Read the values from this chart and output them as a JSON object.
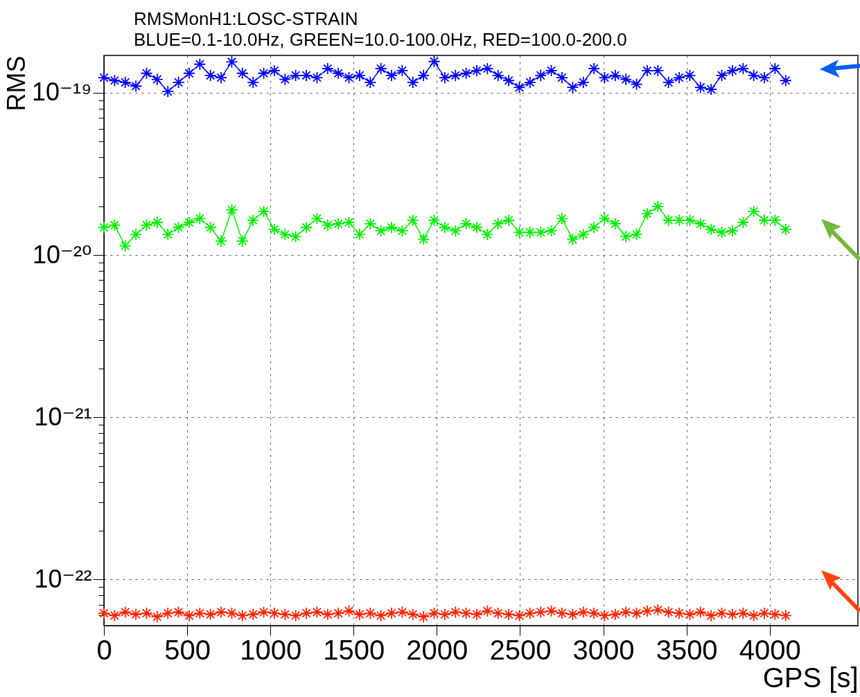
{
  "chart_data": {
    "type": "line",
    "title": "RMSMonH1:LOSC-STRAIN",
    "subtitle": "BLUE=0.1-10.0Hz, GREEN=10.0-100.0Hz, RED=100.0-200.0",
    "xlabel": "GPS [s]",
    "ylabel": "RMS",
    "x": [
      0,
      64,
      128,
      192,
      256,
      320,
      384,
      448,
      512,
      576,
      640,
      704,
      768,
      832,
      896,
      960,
      1024,
      1088,
      1152,
      1216,
      1280,
      1344,
      1408,
      1472,
      1536,
      1600,
      1664,
      1728,
      1792,
      1856,
      1920,
      1984,
      2048,
      2112,
      2176,
      2240,
      2304,
      2368,
      2432,
      2496,
      2560,
      2624,
      2688,
      2752,
      2816,
      2880,
      2944,
      3008,
      3072,
      3136,
      3200,
      3264,
      3328,
      3392,
      3456,
      3520,
      3584,
      3648,
      3712,
      3776,
      3840,
      3904,
      3968,
      4032,
      4096
    ],
    "series": [
      {
        "color": "#0000ff",
        "values": [
          1.24e-19,
          1.19e-19,
          1.16e-19,
          1.1e-19,
          1.32e-19,
          1.21e-19,
          1.02e-19,
          1.16e-19,
          1.32e-19,
          1.5e-19,
          1.28e-19,
          1.24e-19,
          1.55e-19,
          1.32e-19,
          1.16e-19,
          1.32e-19,
          1.37e-19,
          1.21e-19,
          1.28e-19,
          1.28e-19,
          1.24e-19,
          1.41e-19,
          1.32e-19,
          1.24e-19,
          1.28e-19,
          1.16e-19,
          1.41e-19,
          1.28e-19,
          1.37e-19,
          1.16e-19,
          1.28e-19,
          1.56e-19,
          1.24e-19,
          1.28e-19,
          1.32e-19,
          1.37e-19,
          1.41e-19,
          1.28e-19,
          1.19e-19,
          1.08e-19,
          1.16e-19,
          1.28e-19,
          1.37e-19,
          1.24e-19,
          1.08e-19,
          1.16e-19,
          1.41e-19,
          1.24e-19,
          1.28e-19,
          1.21e-19,
          1.13e-19,
          1.37e-19,
          1.37e-19,
          1.16e-19,
          1.24e-19,
          1.28e-19,
          1.08e-19,
          1.05e-19,
          1.28e-19,
          1.37e-19,
          1.41e-19,
          1.28e-19,
          1.24e-19,
          1.41e-19,
          1.19e-19
        ]
      },
      {
        "color": "#00ee00",
        "values": [
          1.48e-20,
          1.53e-20,
          1.14e-20,
          1.34e-20,
          1.53e-20,
          1.59e-20,
          1.34e-20,
          1.48e-20,
          1.59e-20,
          1.68e-20,
          1.48e-20,
          1.22e-20,
          1.9e-20,
          1.22e-20,
          1.64e-20,
          1.86e-20,
          1.44e-20,
          1.34e-20,
          1.3e-20,
          1.48e-20,
          1.68e-20,
          1.53e-20,
          1.56e-20,
          1.59e-20,
          1.34e-20,
          1.56e-20,
          1.41e-20,
          1.48e-20,
          1.41e-20,
          1.64e-20,
          1.25e-20,
          1.64e-20,
          1.48e-20,
          1.41e-20,
          1.56e-20,
          1.48e-20,
          1.34e-20,
          1.56e-20,
          1.64e-20,
          1.38e-20,
          1.38e-20,
          1.38e-20,
          1.41e-20,
          1.68e-20,
          1.25e-20,
          1.34e-20,
          1.48e-20,
          1.68e-20,
          1.56e-20,
          1.3e-20,
          1.34e-20,
          1.8e-20,
          1.99e-20,
          1.64e-20,
          1.64e-20,
          1.64e-20,
          1.56e-20,
          1.44e-20,
          1.38e-20,
          1.41e-20,
          1.59e-20,
          1.86e-20,
          1.64e-20,
          1.64e-20,
          1.44e-20
        ]
      },
      {
        "color": "#ff2200",
        "values": [
          6.2e-23,
          6e-23,
          6.3e-23,
          6.1e-23,
          6.2e-23,
          5.9e-23,
          6.2e-23,
          6.3e-23,
          6e-23,
          6.2e-23,
          6.1e-23,
          6.3e-23,
          6.2e-23,
          6e-23,
          6.1e-23,
          6.3e-23,
          6.2e-23,
          6.1e-23,
          6e-23,
          6.2e-23,
          6.3e-23,
          6.1e-23,
          6.2e-23,
          6.4e-23,
          6.1e-23,
          6.2e-23,
          6e-23,
          6.2e-23,
          6.3e-23,
          6.1e-23,
          5.9e-23,
          6.2e-23,
          6.1e-23,
          6.3e-23,
          6.2e-23,
          6.1e-23,
          6.4e-23,
          6.2e-23,
          6.1e-23,
          6e-23,
          6.2e-23,
          6.3e-23,
          6.4e-23,
          6.2e-23,
          6.1e-23,
          6.3e-23,
          6.2e-23,
          6e-23,
          6.1e-23,
          6.3e-23,
          6.2e-23,
          6.4e-23,
          6.5e-23,
          6.3e-23,
          6.2e-23,
          6.1e-23,
          6.3e-23,
          6e-23,
          6.2e-23,
          6.1e-23,
          6.2e-23,
          6e-23,
          6.2e-23,
          6.1e-23,
          6e-23
        ]
      }
    ],
    "log": true,
    "xlim": [
      0,
      4530
    ],
    "xticks": [
      0,
      500,
      1000,
      1500,
      2000,
      2500,
      3000,
      3500,
      4000
    ],
    "ylim": [
      5.2e-23,
      1.7e-19
    ],
    "yticks": [
      {
        "value": 6e-23,
        "label": null
      },
      {
        "value": 7e-23,
        "label": null
      },
      {
        "value": 8e-23,
        "label": null
      },
      {
        "value": 9e-23,
        "label": null
      },
      {
        "value": 1e-22,
        "label": "10⁻²²"
      },
      {
        "value": 2e-22,
        "label": null
      },
      {
        "value": 3e-22,
        "label": null
      },
      {
        "value": 4e-22,
        "label": null
      },
      {
        "value": 5e-22,
        "label": null
      },
      {
        "value": 6e-22,
        "label": null
      },
      {
        "value": 7e-22,
        "label": null
      },
      {
        "value": 8e-22,
        "label": null
      },
      {
        "value": 9e-22,
        "label": null
      },
      {
        "value": 1e-21,
        "label": "10⁻²¹"
      },
      {
        "value": 2e-21,
        "label": null
      },
      {
        "value": 3e-21,
        "label": null
      },
      {
        "value": 4e-21,
        "label": null
      },
      {
        "value": 5e-21,
        "label": null
      },
      {
        "value": 6e-21,
        "label": null
      },
      {
        "value": 7e-21,
        "label": null
      },
      {
        "value": 8e-21,
        "label": null
      },
      {
        "value": 9e-21,
        "label": null
      },
      {
        "value": 1e-20,
        "label": "10⁻²⁰"
      },
      {
        "value": 2e-20,
        "label": null
      },
      {
        "value": 3e-20,
        "label": null
      },
      {
        "value": 4e-20,
        "label": null
      },
      {
        "value": 5e-20,
        "label": null
      },
      {
        "value": 6e-20,
        "label": null
      },
      {
        "value": 7e-20,
        "label": null
      },
      {
        "value": 8e-20,
        "label": null
      },
      {
        "value": 9e-20,
        "label": null
      },
      {
        "value": 1e-19,
        "label": "10⁻¹⁹"
      }
    ],
    "grid": true,
    "marker": "cross",
    "line_style": "solid",
    "legend": false
  }
}
